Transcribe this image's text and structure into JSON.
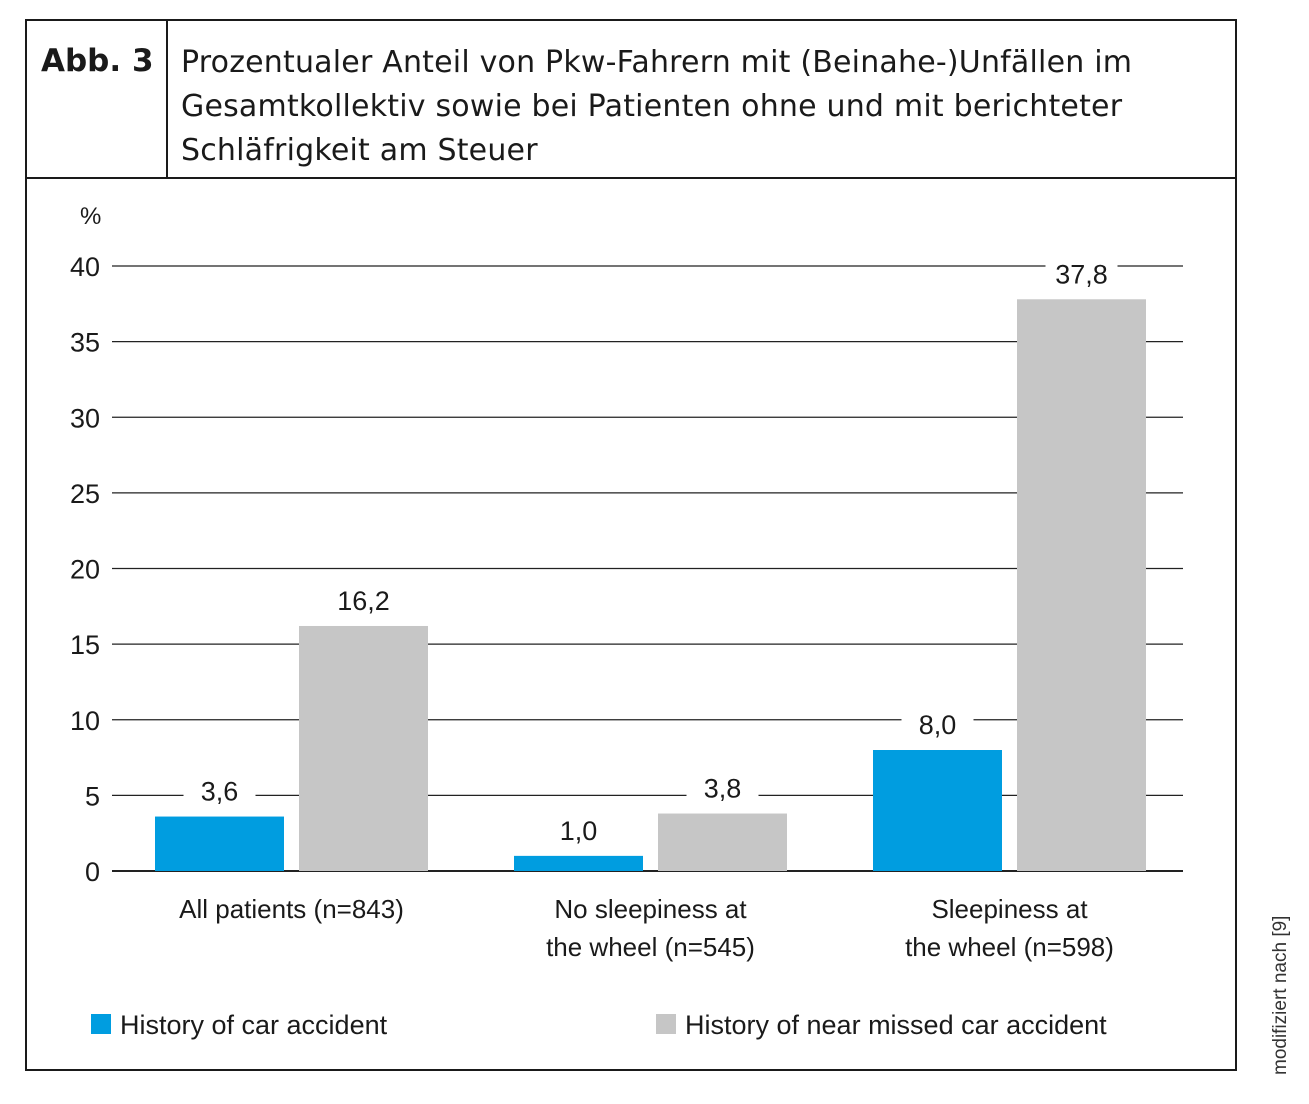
{
  "figure": {
    "number": "Abb. 3",
    "title_lines": [
      "Prozentualer Anteil von Pkw-Fahrern mit (Beinahe-)Unfällen im",
      "Gesamtkollektiv sowie bei Patienten ohne und mit berichteter",
      "Schläfrigkeit am Steuer"
    ],
    "credit": "modifiziert nach [9]"
  },
  "chart_data": {
    "type": "bar",
    "ylabel": "%",
    "ylim": [
      0,
      40
    ],
    "yticks": [
      "0",
      "5",
      "10",
      "15",
      "20",
      "25",
      "30",
      "35",
      "40"
    ],
    "grid": true,
    "legend_position": "bottom",
    "categories": [
      [
        "All patients (n=843)"
      ],
      [
        "No sleepiness at",
        "the wheel (n=545)"
      ],
      [
        "Sleepiness at",
        "the wheel (n=598)"
      ]
    ],
    "series": [
      {
        "name": "History of car accident",
        "color": "#009de0",
        "values": [
          3.6,
          1.0,
          8.0
        ],
        "labels": [
          "3,6",
          "1,0",
          "8,0"
        ]
      },
      {
        "name": "History of near missed car accident",
        "color": "#c6c6c6",
        "values": [
          16.2,
          3.8,
          37.8
        ],
        "labels": [
          "16,2",
          "3,8",
          "37,8"
        ]
      }
    ]
  }
}
